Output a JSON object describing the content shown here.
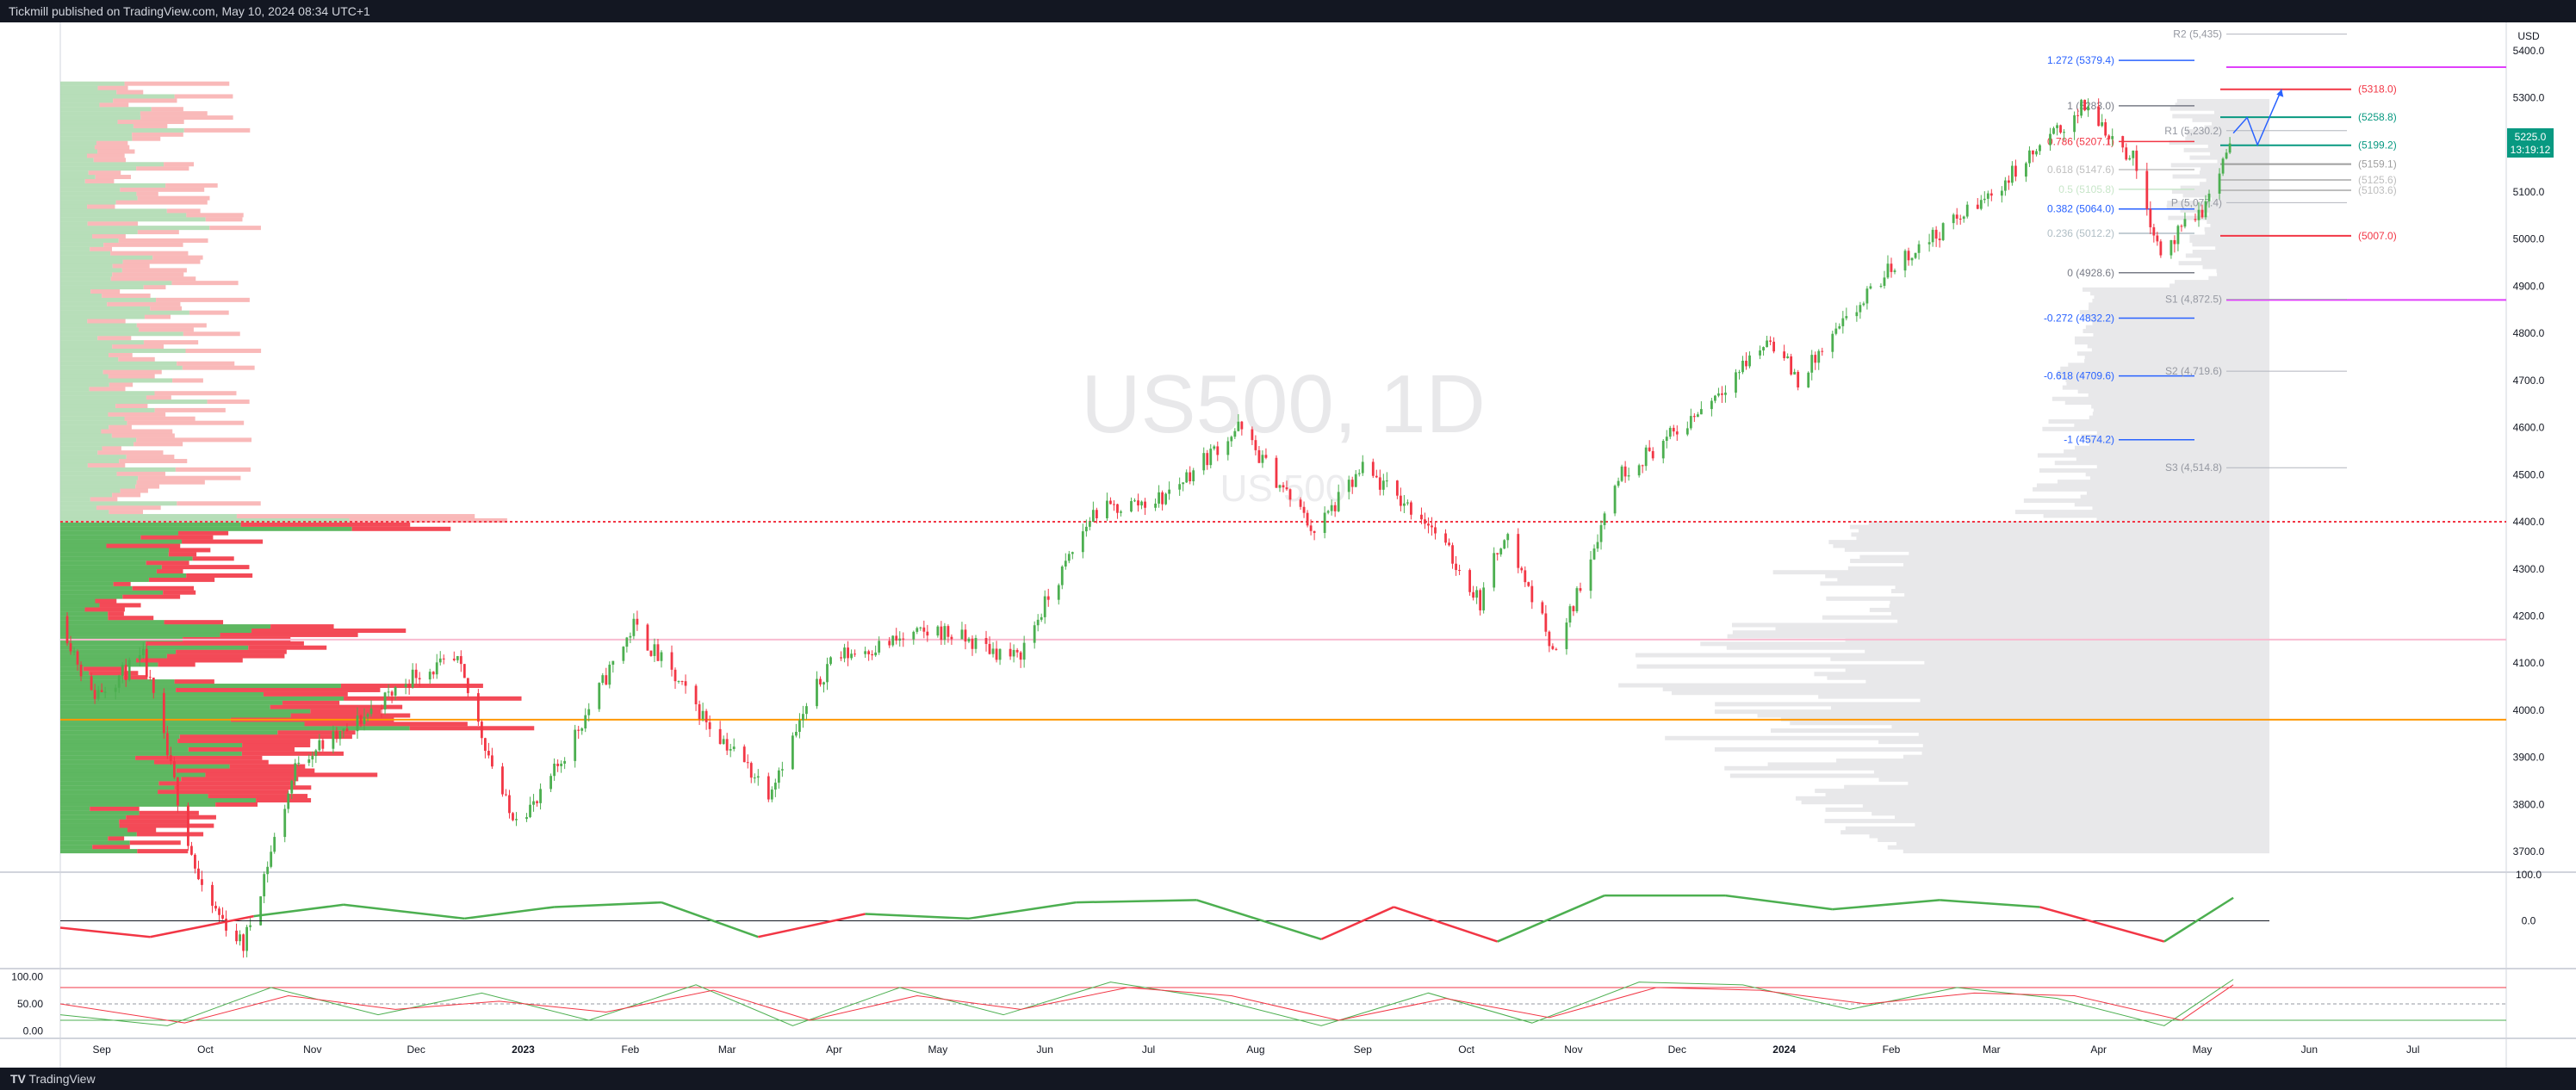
{
  "header": {
    "publisher": "Tickmill published on TradingView.com, May 10, 2024 08:34 UTC+1"
  },
  "footer": {
    "brand": "TradingView"
  },
  "colors": {
    "up": "#4caf50",
    "down": "#f23645",
    "bg": "#ffffff",
    "fib_blue": "#2962ff",
    "fib_red": "#f23645",
    "fib_green": "#089981",
    "pivot": "#9598a1",
    "magenta": "#e040fb",
    "orange": "#ff9800"
  },
  "chart_data": {
    "type": "candlestick",
    "symbol": "US500",
    "interval": "1D",
    "watermark": "US500, 1D",
    "watermark_sub": "US 500",
    "currency": "USD",
    "last_price": "5225.0",
    "countdown": "13:19:12",
    "ylim": [
      3660,
      5460
    ],
    "y_ticks": [
      "5400.0",
      "5300.0",
      "5200.0",
      "5100.0",
      "5000.0",
      "4900.0",
      "4800.0",
      "4700.0",
      "4600.0",
      "4500.0",
      "4400.0",
      "4300.0",
      "4200.0",
      "4100.0",
      "4000.0",
      "3900.0",
      "3800.0",
      "3700.0"
    ],
    "x_ticks": [
      "Sep",
      "Oct",
      "Nov",
      "Dec",
      "2023",
      "Feb",
      "Mar",
      "Apr",
      "May",
      "Jun",
      "Jul",
      "Aug",
      "Sep",
      "Oct",
      "Nov",
      "Dec",
      "2024",
      "Feb",
      "Mar",
      "Apr",
      "May",
      "Jun",
      "Jul"
    ],
    "x_range": [
      "2022-08-20",
      "2024-07-28"
    ],
    "price_path": [
      [
        "2022-08-20",
        4200
      ],
      [
        "2022-08-29",
        4030
      ],
      [
        "2022-09-13",
        4110
      ],
      [
        "2022-09-30",
        3610
      ],
      [
        "2022-10-12",
        3500
      ],
      [
        "2022-10-28",
        3900
      ],
      [
        "2022-11-10",
        3950
      ],
      [
        "2022-12-01",
        4080
      ],
      [
        "2022-12-13",
        4100
      ],
      [
        "2022-12-28",
        3780
      ],
      [
        "2023-01-05",
        3800
      ],
      [
        "2023-02-02",
        4180
      ],
      [
        "2023-02-24",
        3970
      ],
      [
        "2023-03-13",
        3830
      ],
      [
        "2023-03-31",
        4110
      ],
      [
        "2023-05-01",
        4170
      ],
      [
        "2023-05-24",
        4110
      ],
      [
        "2023-06-15",
        4420
      ],
      [
        "2023-07-05",
        4450
      ],
      [
        "2023-07-27",
        4600
      ],
      [
        "2023-08-18",
        4380
      ],
      [
        "2023-09-01",
        4510
      ],
      [
        "2023-09-20",
        4400
      ],
      [
        "2023-10-05",
        4230
      ],
      [
        "2023-10-12",
        4380
      ],
      [
        "2023-10-27",
        4120
      ],
      [
        "2023-11-14",
        4500
      ],
      [
        "2023-12-01",
        4590
      ],
      [
        "2023-12-28",
        4790
      ],
      [
        "2024-01-05",
        4700
      ],
      [
        "2024-02-01",
        4940
      ],
      [
        "2024-02-29",
        5090
      ],
      [
        "2024-03-28",
        5283
      ],
      [
        "2024-04-11",
        5170
      ],
      [
        "2024-04-19",
        4970
      ],
      [
        "2024-05-02",
        5070
      ],
      [
        "2024-05-10",
        5225
      ]
    ],
    "forecast_path": [
      [
        "2024-05-10",
        5225
      ],
      [
        "2024-05-14",
        5258
      ],
      [
        "2024-05-17",
        5200
      ],
      [
        "2024-05-24",
        5318
      ]
    ],
    "fib_levels": [
      {
        "label": "1.272 (5379.4)",
        "value": 5379.4,
        "color": "#2962ff"
      },
      {
        "label": "1 (5283.0)",
        "value": 5283.0,
        "color": "#787b86"
      },
      {
        "label": "0.786 (5207.1)",
        "value": 5207.1,
        "color": "#f23645"
      },
      {
        "label": "0.618 (5147.6)",
        "value": 5147.6,
        "color": "#c0c0c0"
      },
      {
        "label": "0.5 (5105.8)",
        "value": 5105.8,
        "color": "#c8e6c9"
      },
      {
        "label": "0.382 (5064.0)",
        "value": 5064.0,
        "color": "#2962ff"
      },
      {
        "label": "0.236 (5012.2)",
        "value": 5012.2,
        "color": "#b0bec5"
      },
      {
        "label": "0 (4928.6)",
        "value": 4928.6,
        "color": "#787b86"
      },
      {
        "label": "-0.272 (4832.2)",
        "value": 4832.2,
        "color": "#2962ff"
      },
      {
        "label": "-0.618 (4709.6)",
        "value": 4709.6,
        "color": "#2962ff"
      },
      {
        "label": "-1 (4574.2)",
        "value": 4574.2,
        "color": "#2962ff"
      }
    ],
    "pivots": [
      {
        "label": "R2 (5,435)",
        "value": 5435
      },
      {
        "label": "R1 (5,230.2)",
        "value": 5230.2
      },
      {
        "label": "P (5,077.4)",
        "value": 5077.4
      },
      {
        "label": "S1 (4,872.5)",
        "value": 4872.5
      },
      {
        "label": "S2 (4,719.6)",
        "value": 4719.6
      },
      {
        "label": "S3 (4,514.8)",
        "value": 4514.8
      }
    ],
    "targets": [
      {
        "label": "(5318.0)",
        "value": 5318.0,
        "color": "#f23645"
      },
      {
        "label": "(5258.8)",
        "value": 5258.8,
        "color": "#089981"
      },
      {
        "label": "(5199.2)",
        "value": 5199.2,
        "color": "#089981"
      },
      {
        "label": "(5159.1)",
        "value": 5159.1,
        "color": "#9e9e9e"
      },
      {
        "label": "(5125.6)",
        "value": 5125.6,
        "color": "#bdbdbd"
      },
      {
        "label": "(5103.6)",
        "value": 5103.6,
        "color": "#bdbdbd"
      },
      {
        "label": "(5007.0)",
        "value": 5007.0,
        "color": "#f23645"
      }
    ],
    "h_lines": [
      {
        "value": 5365,
        "color": "#e040fb",
        "style": "solid"
      },
      {
        "value": 4871,
        "color": "#e040fb",
        "style": "solid"
      },
      {
        "value": 4400,
        "color": "#f23645",
        "style": "dotted"
      },
      {
        "value": 3980,
        "color": "#ff9800",
        "style": "solid"
      },
      {
        "value": 4150,
        "color": "#f8bbd0",
        "style": "solid"
      }
    ],
    "indicator1": {
      "ticks": [
        "100.0",
        "0.0"
      ],
      "ylim": [
        -100,
        100
      ],
      "path": [
        [
          "2022-08-20",
          -15
        ],
        [
          "2022-09-15",
          -35
        ],
        [
          "2022-10-15",
          10
        ],
        [
          "2022-11-10",
          35
        ],
        [
          "2022-12-15",
          5
        ],
        [
          "2023-01-10",
          30
        ],
        [
          "2023-02-10",
          40
        ],
        [
          "2023-03-10",
          -35
        ],
        [
          "2023-04-10",
          15
        ],
        [
          "2023-05-10",
          5
        ],
        [
          "2023-06-10",
          40
        ],
        [
          "2023-07-15",
          45
        ],
        [
          "2023-08-20",
          -40
        ],
        [
          "2023-09-10",
          30
        ],
        [
          "2023-10-10",
          -45
        ],
        [
          "2023-11-10",
          55
        ],
        [
          "2023-12-15",
          55
        ],
        [
          "2024-01-15",
          25
        ],
        [
          "2024-02-15",
          45
        ],
        [
          "2024-03-15",
          30
        ],
        [
          "2024-04-20",
          -45
        ],
        [
          "2024-05-10",
          50
        ]
      ]
    },
    "indicator2": {
      "ticks": [
        "100.00",
        "50.00",
        "0.00"
      ],
      "ylim": [
        -10,
        110
      ],
      "path_green": [
        [
          "2022-08-20",
          30
        ],
        [
          "2022-09-20",
          10
        ],
        [
          "2022-10-20",
          80
        ],
        [
          "2022-11-20",
          30
        ],
        [
          "2022-12-20",
          70
        ],
        [
          "2023-01-20",
          20
        ],
        [
          "2023-02-20",
          85
        ],
        [
          "2023-03-20",
          10
        ],
        [
          "2023-04-20",
          80
        ],
        [
          "2023-05-20",
          30
        ],
        [
          "2023-06-20",
          90
        ],
        [
          "2023-07-20",
          60
        ],
        [
          "2023-08-20",
          10
        ],
        [
          "2023-09-20",
          70
        ],
        [
          "2023-10-20",
          15
        ],
        [
          "2023-11-20",
          90
        ],
        [
          "2023-12-20",
          85
        ],
        [
          "2024-01-20",
          40
        ],
        [
          "2024-02-20",
          80
        ],
        [
          "2024-03-20",
          60
        ],
        [
          "2024-04-20",
          10
        ],
        [
          "2024-05-10",
          95
        ]
      ],
      "path_red": [
        [
          "2022-08-20",
          50
        ],
        [
          "2022-09-25",
          15
        ],
        [
          "2022-10-25",
          65
        ],
        [
          "2022-11-25",
          40
        ],
        [
          "2022-12-25",
          55
        ],
        [
          "2023-01-25",
          35
        ],
        [
          "2023-02-25",
          75
        ],
        [
          "2023-03-25",
          20
        ],
        [
          "2023-04-25",
          65
        ],
        [
          "2023-05-25",
          40
        ],
        [
          "2023-06-25",
          80
        ],
        [
          "2023-07-25",
          65
        ],
        [
          "2023-08-25",
          20
        ],
        [
          "2023-09-25",
          60
        ],
        [
          "2023-10-25",
          25
        ],
        [
          "2023-11-25",
          80
        ],
        [
          "2023-12-25",
          75
        ],
        [
          "2024-01-25",
          50
        ],
        [
          "2024-02-25",
          70
        ],
        [
          "2024-03-25",
          65
        ],
        [
          "2024-04-25",
          20
        ],
        [
          "2024-05-10",
          85
        ]
      ]
    }
  }
}
